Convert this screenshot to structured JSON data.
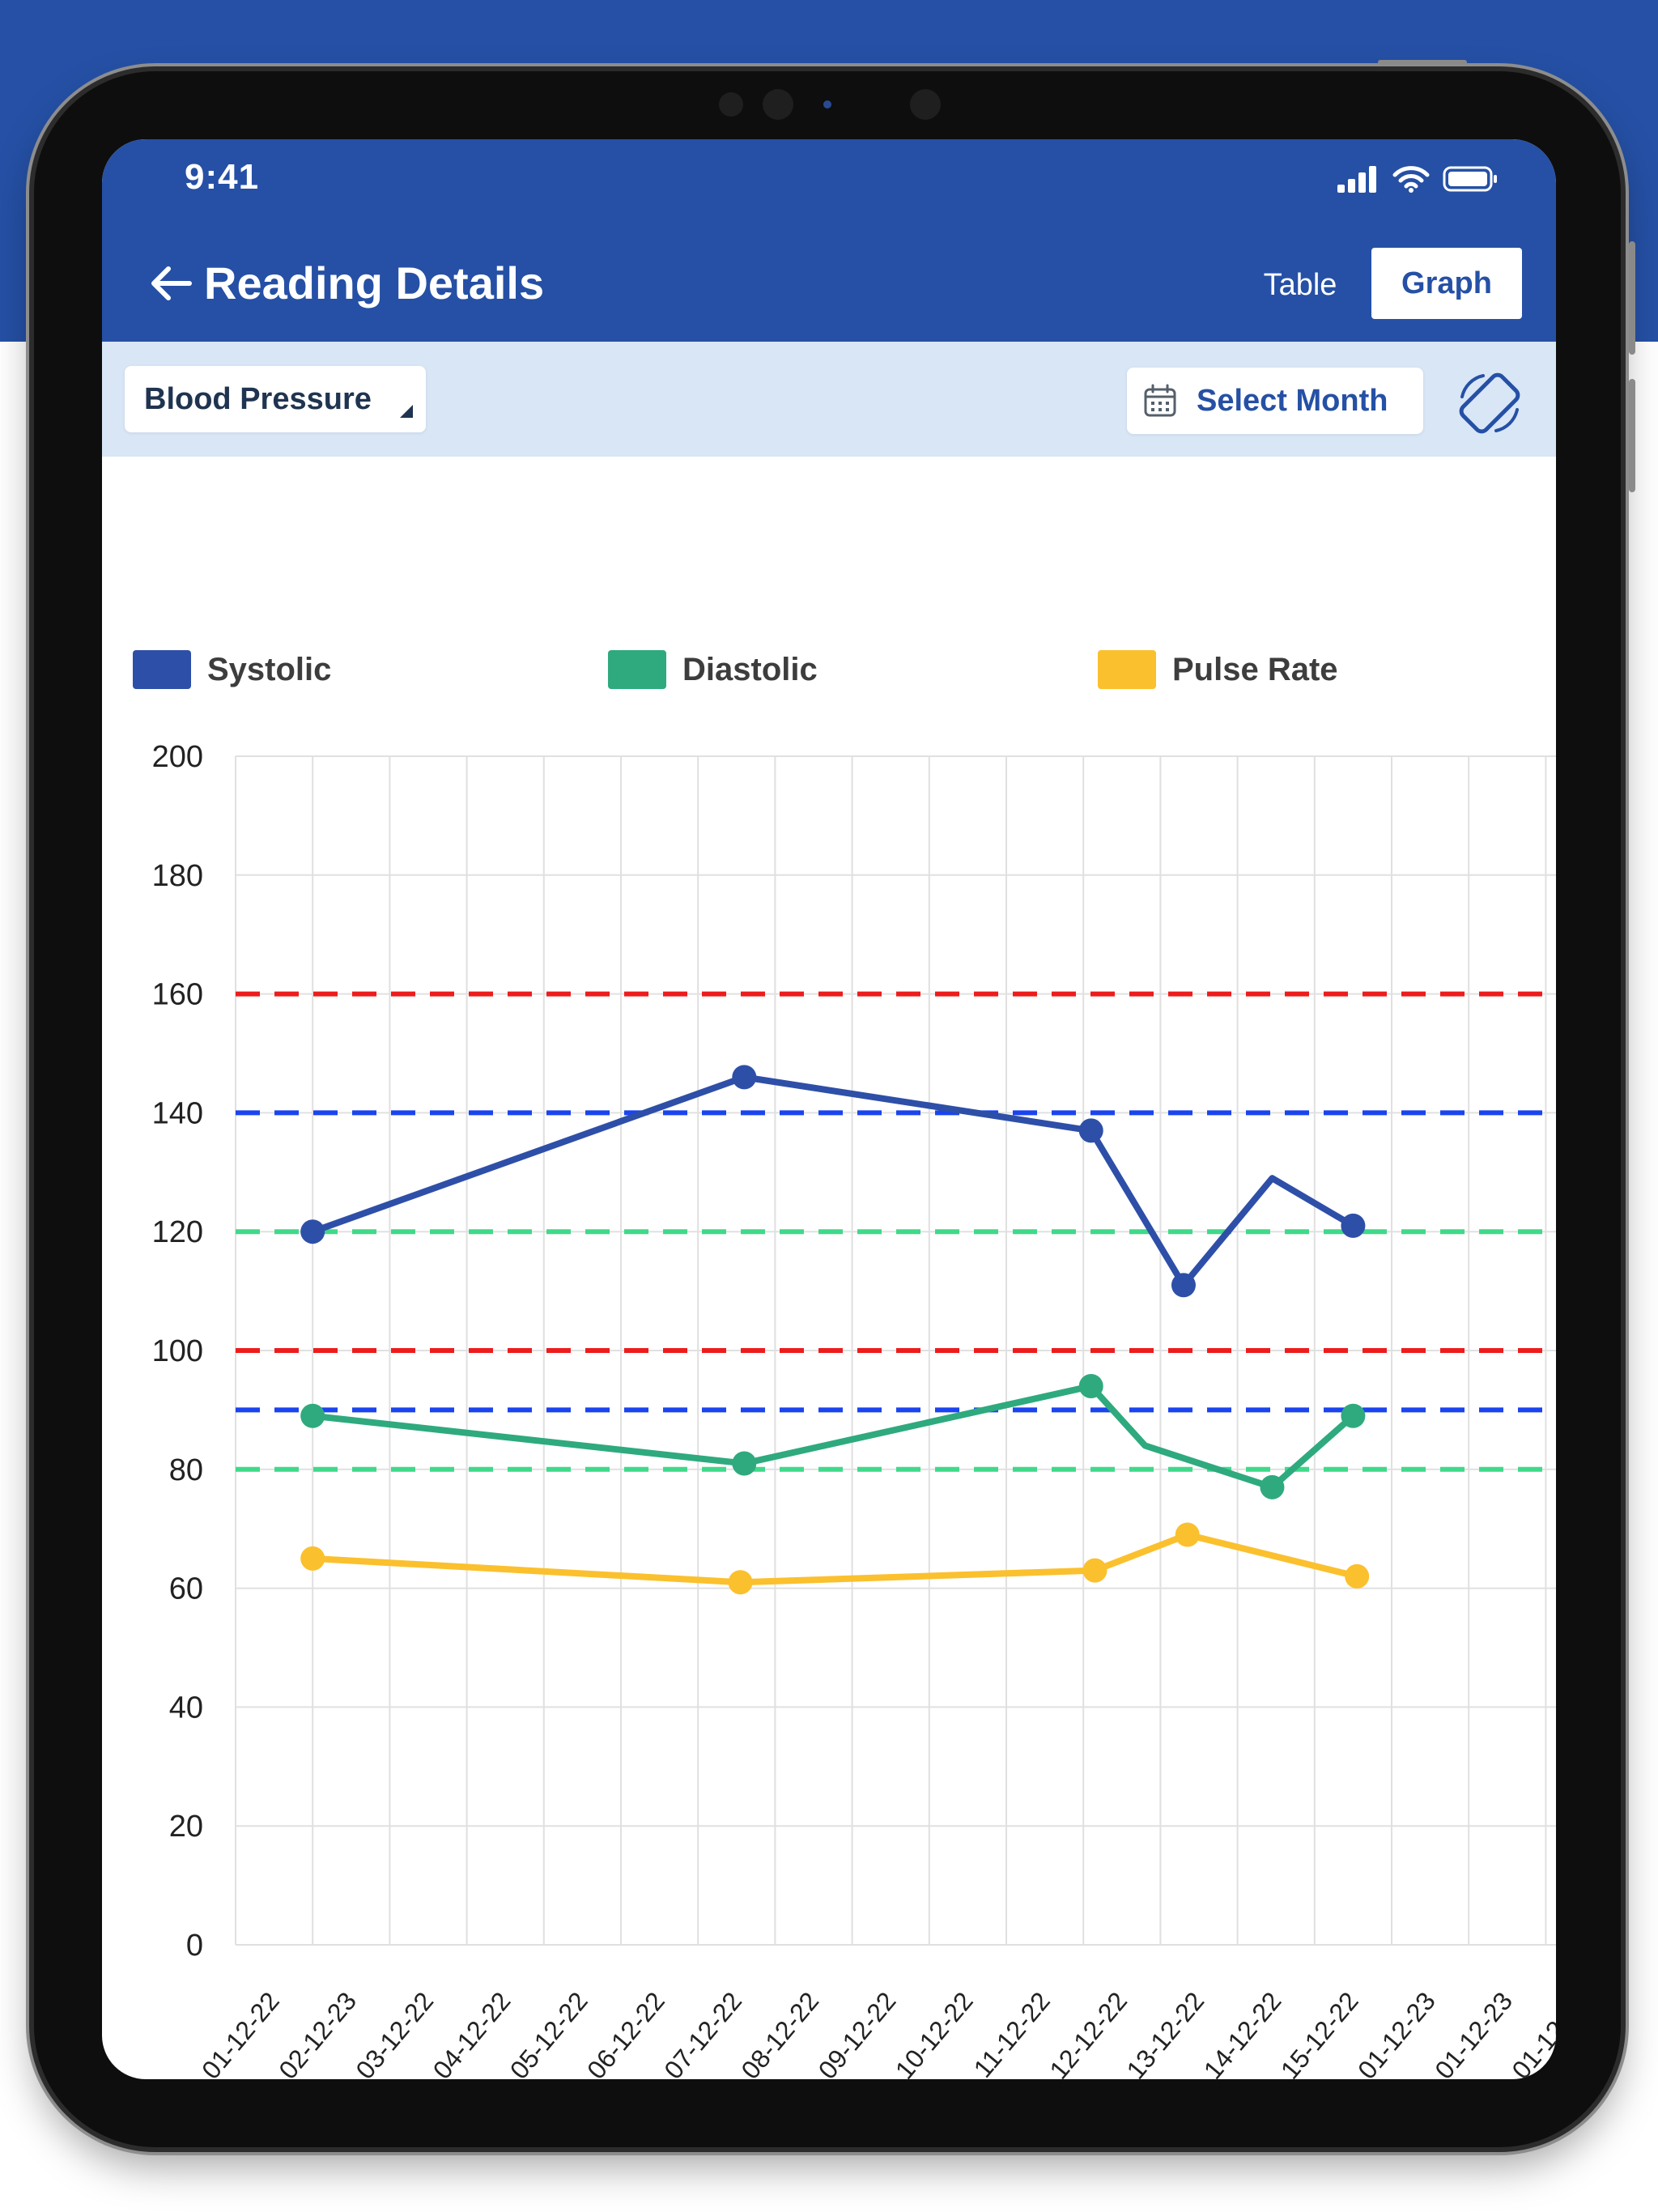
{
  "status_bar": {
    "time": "9:41"
  },
  "header": {
    "title": "Reading Details",
    "tabs": [
      {
        "label": "Table",
        "active": false
      },
      {
        "label": "Graph",
        "active": true
      }
    ]
  },
  "filters": {
    "metric": "Blood Pressure",
    "month_button": "Select Month"
  },
  "icons": [
    "back-arrow-icon",
    "calendar-icon",
    "screen-rotation-icon",
    "signal-icon",
    "wifi-icon",
    "battery-icon"
  ],
  "colors": {
    "brand": "#2550a5",
    "systolic": "#2e4fa8",
    "diastolic": "#2eaa7e",
    "pulse": "#fbc02d",
    "threshold_red": "#ee1c1c",
    "threshold_blue": "#1a44f0",
    "threshold_green": "#3fd98a"
  },
  "chart_data": {
    "type": "line",
    "ylim": [
      0,
      200
    ],
    "y_ticks": [
      "0",
      "20",
      "40",
      "60",
      "80",
      "100",
      "120",
      "140",
      "160",
      "180",
      "200"
    ],
    "categories": [
      "01-12-22",
      "02-12-23",
      "03-12-22",
      "04-12-22",
      "05-12-22",
      "06-12-22",
      "07-12-22",
      "08-12-22",
      "09-12-22",
      "10-12-22",
      "11-12-22",
      "12-12-22",
      "13-12-22",
      "14-12-22",
      "15-12-22",
      "01-12-23",
      "01-12-23",
      "01-12-23",
      "01-1"
    ],
    "grid": true,
    "legend_position": "top",
    "series": [
      {
        "name": "Systolic",
        "color": "#2e4fa8",
        "x": [
          0.5,
          6.1,
          10.6,
          11.8,
          12.95,
          14.0
        ],
        "values": [
          120,
          146,
          137,
          111,
          129,
          121
        ],
        "markers": [
          true,
          true,
          true,
          true,
          false,
          true
        ]
      },
      {
        "name": "Diastolic",
        "color": "#2eaa7e",
        "x": [
          0.5,
          6.1,
          10.6,
          11.3,
          12.95,
          14.0
        ],
        "values": [
          89,
          81,
          94,
          84,
          77,
          89
        ],
        "markers": [
          true,
          true,
          true,
          false,
          true,
          true
        ]
      },
      {
        "name": "Pulse Rate",
        "color": "#fbc02d",
        "x": [
          0.5,
          6.05,
          10.65,
          11.85,
          14.05
        ],
        "values": [
          65,
          61,
          63,
          69,
          62
        ],
        "markers": [
          true,
          true,
          true,
          true,
          true
        ]
      }
    ],
    "thresholds": [
      {
        "value": 160,
        "color": "#ee1c1c"
      },
      {
        "value": 140,
        "color": "#1a44f0"
      },
      {
        "value": 120,
        "color": "#3fd98a"
      },
      {
        "value": 100,
        "color": "#ee1c1c"
      },
      {
        "value": 90,
        "color": "#1a44f0"
      },
      {
        "value": 80,
        "color": "#3fd98a"
      }
    ]
  }
}
